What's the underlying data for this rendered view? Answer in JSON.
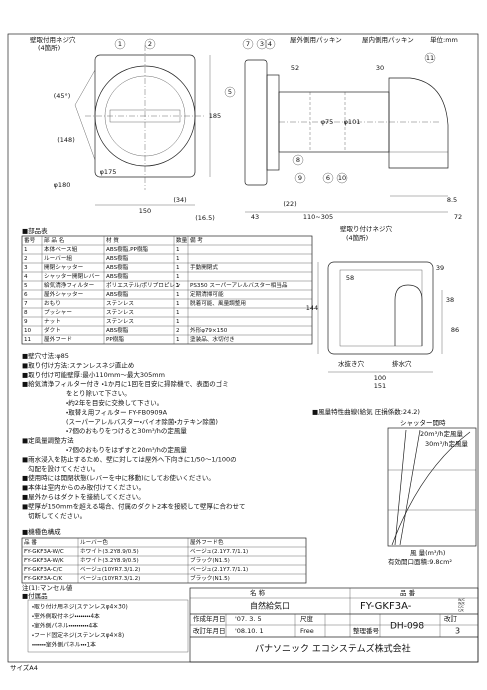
{
  "header": {
    "mounting_holes": "壁取付用ネジ穴",
    "mounting_holes_count": "(4箇所)",
    "outdoor_packing": "屋外側用パッキン",
    "indoor_packing": "屋内側用パッキン",
    "unit": "単位:mm"
  },
  "callouts": [
    "1",
    "2",
    "3",
    "7",
    "5",
    "9",
    "4",
    "8",
    "6",
    "10",
    "11"
  ],
  "dimensions": [
    "150",
    "185",
    "(16.5)",
    "(34)",
    "φ180",
    "(45°)",
    "(148)",
    "43",
    "110~305",
    "72",
    "52",
    "30",
    "φ75",
    "φ101",
    "8.5",
    "(22)",
    "144",
    "58",
    "100",
    "151",
    "39",
    "38",
    "86",
    "φ175"
  ],
  "side_labels": {
    "holes": "壁取り付けネジ穴",
    "holes_count": "(4箇所)",
    "drain": "水抜き穴",
    "drain2": "排水穴"
  },
  "parts_table": {
    "heading": "■部品表",
    "headers": [
      "番号",
      "部 品 名",
      "材 質",
      "数量",
      "備 考"
    ],
    "rows": [
      [
        "1",
        "本体ベース組",
        "ABS樹脂,PP樹脂",
        "1",
        ""
      ],
      [
        "2",
        "ルーバー組",
        "ABS樹脂",
        "1",
        ""
      ],
      [
        "3",
        "開閉シャッター",
        "ABS樹脂",
        "1",
        "手動開閉式"
      ],
      [
        "4",
        "シャッター開閉レバー",
        "ABS樹脂",
        "1",
        ""
      ],
      [
        "5",
        "給気清浄フィルター",
        "ポリエステル/ポリプロピレン",
        "1",
        "PS350 スーパーアレルバスター相当品"
      ],
      [
        "6",
        "屋外シャッター",
        "ABS樹脂",
        "1",
        "定期清掃可能"
      ],
      [
        "7",
        "おもり",
        "ステンレス",
        "1",
        "脱着可能、風量調整用"
      ],
      [
        "8",
        "プッシャー",
        "ステンレス",
        "1",
        ""
      ],
      [
        "9",
        "ナット",
        "ステンレス",
        "1",
        ""
      ],
      [
        "10",
        "ダクト",
        "ABS樹脂",
        "2",
        "外形φ79×150"
      ],
      [
        "11",
        "屋外フード",
        "PP樹脂",
        "1",
        "塗装品、水切付き"
      ]
    ]
  },
  "notes": [
    "■壁穴寸法:φ85",
    "■取り付け方法:ステンレスネジ直止め",
    "■取り付け可能壁厚:最小110mm〜最大305mm",
    "■給気清浄フィルター付き ・1か月に1回を目安に掃除機で、表面のゴミ",
    "をとり除いて下さい。",
    "・約2年を目安に交換して下さい。",
    "・取替え用フィルター FY-FB0909A",
    "(スーパーアレルバスター・バイオ除菌・カテキン除菌)",
    "・7個のおもりをつけると30m³/hの定風量",
    "■定風量調整方法",
    "・7個のおもりをはずすと20m³/hの定風量",
    "■雨水浸入を防止するため、壁に対しては屋外へ下向きに1/50〜1/100の",
    "勾配を設けてください。",
    "■使用時には開閉状態(レバーを中に移動)にしてお使いください。",
    "■本体は室内からのみ取付けてください。",
    "■屋外からはダクトを接続してください。",
    "■壁厚が150mmを超える場合、付属のダクト2本を接続して壁厚に合わせて",
    "切断してください。"
  ],
  "color_table": {
    "heading": "■機種色構成",
    "headers": [
      "品 番",
      "ルーバー色",
      "屋外フード色"
    ],
    "rows": [
      [
        "FY-GKF3A-W/C",
        "ホワイト(3.2Y8.9/0.5)",
        "ベージュ(2.1Y7.7/1.1)"
      ],
      [
        "FY-GKF3A-W/K",
        "ホワイト(3.2Y8.9/0.5)",
        "ブラック(N1.5)"
      ],
      [
        "FY-GKF3A-C/C",
        "ベージュ(10YR7.3/1.2)",
        "ベージュ(2.1Y7.7/1.1)"
      ],
      [
        "FY-GKF3A-C/K",
        "ベージュ(10YR7.3/1.2)",
        "ブラック(N1.5)"
      ]
    ],
    "note": "注(1):マンセル値"
  },
  "accessories": {
    "heading": "■付属品",
    "items": [
      "・取り付け用ネジ(ステンレスφ4×30)",
      "・室外側取付ネジ・・・・・・・・4本",
      "・室外側パネル・・・・・・・・・・4本",
      "・フード固定ネジ(ステンレスφ4×8)",
      "・・・・・・・室外側パネル・・・1本"
    ]
  },
  "curve_chart": {
    "title": "■風量特性曲線(給気 圧損係数:24.2)",
    "labels": [
      "シャッター開時",
      "20m³/h定風量",
      "30m³/h定風量"
    ],
    "x_label": "風 量(m³/h)",
    "area": "有効開口面積:9.8cm²"
  },
  "title_block": {
    "name_label": "名 称",
    "model_label": "品 番",
    "name": "自然給気口",
    "model": "FY-GKF3A-",
    "variants": [
      "W/C",
      "W/K",
      "C/C",
      "C/K"
    ],
    "created_label": "作成年月日",
    "created": "'07. 3. 5",
    "revised_label": "改訂年月日",
    "revised": "'08.10. 1",
    "scale_label": "尺度",
    "scale": "Free",
    "number_label": "整理番号",
    "number": "DH-098",
    "revision_label": "改訂",
    "revision": "3",
    "company": "パナソニック エコシステムズ株式会社"
  },
  "footer": "サイズA4"
}
